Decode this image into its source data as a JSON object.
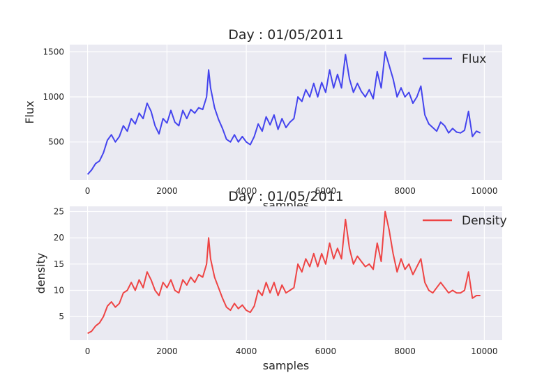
{
  "chart_data": [
    {
      "type": "line",
      "title": "Day : 01/05/2011",
      "xlabel": "samples",
      "ylabel": "Flux",
      "xlim": [
        -450,
        10450
      ],
      "ylim": [
        80,
        1580
      ],
      "xticks": [
        0,
        2000,
        4000,
        6000,
        8000,
        10000
      ],
      "yticks": [
        500,
        1000,
        1500
      ],
      "grid": true,
      "legend_position": "top-right",
      "color": "#4444ee",
      "series": [
        {
          "name": "Flux",
          "x": [
            0,
            100,
            200,
            300,
            400,
            500,
            600,
            700,
            800,
            900,
            1000,
            1100,
            1200,
            1300,
            1400,
            1500,
            1600,
            1700,
            1800,
            1900,
            2000,
            2100,
            2200,
            2300,
            2400,
            2500,
            2600,
            2700,
            2800,
            2900,
            3000,
            3050,
            3100,
            3200,
            3300,
            3400,
            3500,
            3600,
            3700,
            3800,
            3900,
            4000,
            4100,
            4200,
            4300,
            4400,
            4500,
            4600,
            4700,
            4800,
            4900,
            5000,
            5100,
            5200,
            5300,
            5400,
            5500,
            5600,
            5700,
            5800,
            5900,
            6000,
            6100,
            6200,
            6300,
            6400,
            6500,
            6600,
            6700,
            6800,
            6900,
            7000,
            7100,
            7200,
            7300,
            7400,
            7500,
            7600,
            7700,
            7800,
            7900,
            8000,
            8100,
            8200,
            8300,
            8400,
            8500,
            8600,
            8700,
            8800,
            8900,
            9000,
            9100,
            9200,
            9300,
            9400,
            9500,
            9600,
            9700,
            9800,
            9900
          ],
          "values": [
            140,
            190,
            260,
            290,
            380,
            520,
            580,
            500,
            560,
            680,
            620,
            760,
            700,
            820,
            760,
            930,
            840,
            680,
            590,
            760,
            710,
            850,
            720,
            680,
            850,
            760,
            860,
            820,
            880,
            860,
            1000,
            1300,
            1100,
            880,
            750,
            650,
            530,
            500,
            580,
            500,
            560,
            500,
            470,
            560,
            700,
            620,
            780,
            690,
            800,
            640,
            760,
            660,
            720,
            760,
            1000,
            950,
            1080,
            1000,
            1150,
            1000,
            1160,
            1050,
            1300,
            1100,
            1250,
            1100,
            1470,
            1200,
            1050,
            1150,
            1060,
            1000,
            1080,
            980,
            1280,
            1100,
            1500,
            1350,
            1200,
            1000,
            1100,
            1000,
            1050,
            930,
            1000,
            1120,
            800,
            700,
            660,
            620,
            720,
            680,
            600,
            650,
            610,
            600,
            630,
            840,
            560,
            620,
            600
          ]
        }
      ]
    },
    {
      "type": "line",
      "title": "Day : 01/05/2011",
      "xlabel": "samples",
      "ylabel": "density",
      "xlim": [
        -450,
        10450
      ],
      "ylim": [
        0.5,
        26.0
      ],
      "xticks": [
        0,
        2000,
        4000,
        6000,
        8000,
        10000
      ],
      "yticks": [
        5,
        10,
        15,
        20,
        25
      ],
      "grid": true,
      "legend_position": "top-right",
      "color": "#ee4444",
      "series": [
        {
          "name": "Density",
          "x": [
            0,
            100,
            200,
            300,
            400,
            500,
            600,
            700,
            800,
            900,
            1000,
            1100,
            1200,
            1300,
            1400,
            1500,
            1600,
            1700,
            1800,
            1900,
            2000,
            2100,
            2200,
            2300,
            2400,
            2500,
            2600,
            2700,
            2800,
            2900,
            3000,
            3050,
            3100,
            3200,
            3300,
            3400,
            3500,
            3600,
            3700,
            3800,
            3900,
            4000,
            4100,
            4200,
            4300,
            4400,
            4500,
            4600,
            4700,
            4800,
            4900,
            5000,
            5100,
            5200,
            5300,
            5400,
            5500,
            5600,
            5700,
            5800,
            5900,
            6000,
            6100,
            6200,
            6300,
            6400,
            6500,
            6600,
            6700,
            6800,
            6900,
            7000,
            7100,
            7200,
            7300,
            7400,
            7500,
            7600,
            7700,
            7800,
            7900,
            8000,
            8100,
            8200,
            8300,
            8400,
            8500,
            8600,
            8700,
            8800,
            8900,
            9000,
            9100,
            9200,
            9300,
            9400,
            9500,
            9600,
            9700,
            9800,
            9900
          ],
          "values": [
            1.8,
            2.2,
            3.2,
            3.8,
            5.0,
            7.0,
            7.8,
            6.8,
            7.5,
            9.5,
            10.0,
            11.5,
            10.0,
            12.0,
            10.5,
            13.5,
            12.0,
            10.0,
            9.0,
            11.5,
            10.5,
            12.0,
            10.0,
            9.5,
            12.0,
            11.0,
            12.5,
            11.5,
            13.0,
            12.5,
            15.0,
            20.0,
            16.0,
            12.5,
            10.5,
            8.5,
            6.8,
            6.2,
            7.5,
            6.5,
            7.2,
            6.2,
            5.8,
            7.0,
            10.0,
            9.0,
            11.5,
            9.5,
            11.5,
            9.0,
            11.0,
            9.5,
            10.0,
            10.5,
            15.0,
            13.5,
            16.0,
            14.5,
            17.0,
            14.5,
            17.0,
            15.0,
            19.0,
            16.0,
            18.0,
            16.0,
            23.5,
            18.0,
            15.0,
            16.5,
            15.5,
            14.5,
            15.0,
            14.0,
            19.0,
            15.5,
            25.0,
            21.5,
            17.0,
            13.5,
            16.0,
            14.0,
            15.0,
            13.0,
            14.5,
            16.0,
            11.5,
            10.0,
            9.5,
            10.5,
            11.5,
            10.5,
            9.5,
            10.0,
            9.5,
            9.5,
            10.0,
            13.5,
            8.5,
            9.0,
            9.0
          ]
        }
      ]
    }
  ]
}
